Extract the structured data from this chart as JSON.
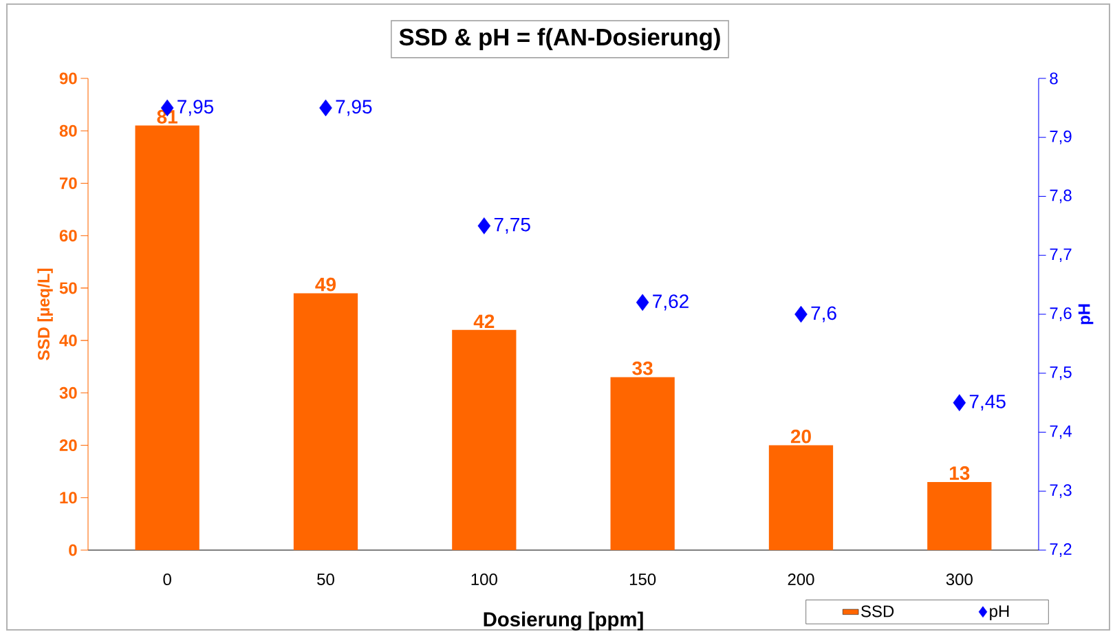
{
  "chart_data": {
    "type": "bar",
    "title": "SSD & pH = f(AN-Dosierung)",
    "xlabel": "Dosierung [ppm]",
    "ylabel": "SSD [µeq/L]",
    "y2label": "pH",
    "categories": [
      "0",
      "50",
      "100",
      "150",
      "200",
      "300"
    ],
    "series": [
      {
        "name": "SSD",
        "color": "#ff6600",
        "values": [
          81,
          49,
          42,
          33,
          20,
          13
        ],
        "value_labels": [
          "81",
          "49",
          "42",
          "33",
          "20",
          "13"
        ]
      },
      {
        "name": "pH",
        "type": "scatter",
        "axis": "y2",
        "marker": "diamond",
        "color": "#0000ff",
        "values": [
          7.95,
          7.95,
          7.75,
          7.62,
          7.6,
          7.45
        ],
        "value_labels": [
          "7,95",
          "7,95",
          "7,75",
          "7,62",
          "7,6",
          "7,45"
        ]
      }
    ],
    "ylim": [
      0,
      90
    ],
    "yticks": [
      0,
      10,
      20,
      30,
      40,
      50,
      60,
      70,
      80,
      90
    ],
    "y2lim": [
      7.2,
      8
    ],
    "y2ticks": [
      {
        "value": 7.2,
        "label": "7,2"
      },
      {
        "value": 7.3,
        "label": "7,3"
      },
      {
        "value": 7.4,
        "label": "7,4"
      },
      {
        "value": 7.5,
        "label": "7,5"
      },
      {
        "value": 7.6,
        "label": "7,6"
      },
      {
        "value": 7.7,
        "label": "7,7"
      },
      {
        "value": 7.8,
        "label": "7,8"
      },
      {
        "value": 7.9,
        "label": "7,9"
      },
      {
        "value": 8,
        "label": "8"
      }
    ],
    "legend": "bottom right",
    "grid": false
  }
}
